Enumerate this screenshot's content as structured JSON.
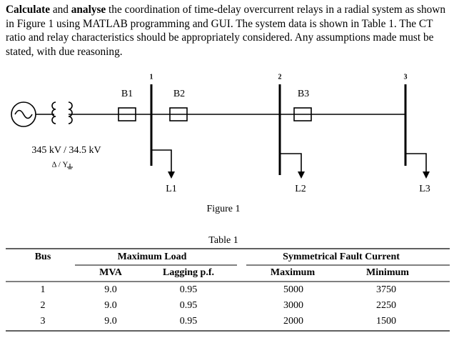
{
  "paragraph": {
    "parts": [
      "Calculate",
      " and ",
      "analyse",
      " the coordination of time-delay overcurrent relays in a radial system as shown in Figure 1 using MATLAB programming and GUI. The system data is shown in Table 1. The CT ratio and relay characteristics should be appropriately considered. Any assumptions made must be stated, with due reasoning."
    ]
  },
  "figure": {
    "buses": [
      "1",
      "2",
      "3"
    ],
    "breakers": [
      "B1",
      "B2",
      "B3"
    ],
    "transformer": "345 kV / 34.5 kV",
    "connection": "Δ / Y",
    "loads": [
      "L1",
      "L2",
      "L3"
    ],
    "caption": "Figure 1"
  },
  "table": {
    "caption": "Table 1",
    "header": [
      "Bus",
      "Maximum Load",
      "Symmetrical Fault Current"
    ],
    "subheader": [
      "MVA",
      "Lagging p.f.",
      "Maximum",
      "Minimum"
    ],
    "rows": [
      [
        "1",
        "9.0",
        "0.95",
        "5000",
        "3750"
      ],
      [
        "2",
        "9.0",
        "0.95",
        "3000",
        "2250"
      ],
      [
        "3",
        "9.0",
        "0.95",
        "2000",
        "1500"
      ]
    ]
  }
}
